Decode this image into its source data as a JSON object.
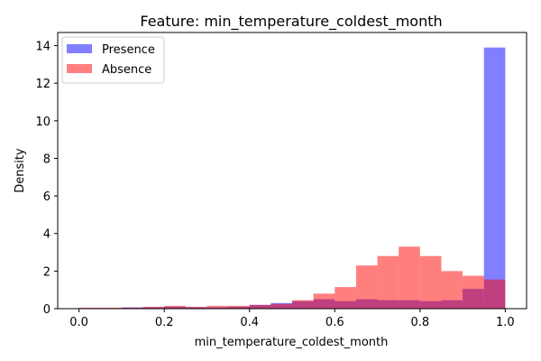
{
  "chart_data": {
    "type": "bar",
    "title": "Feature: min_temperature_coldest_month",
    "xlabel": "min_temperature_coldest_month",
    "ylabel": "Density",
    "xlim": [
      -0.05,
      1.05
    ],
    "ylim": [
      0,
      14.7
    ],
    "xticks": [
      "0.0",
      "0.2",
      "0.4",
      "0.6",
      "0.8",
      "1.0"
    ],
    "yticks": [
      "0",
      "2",
      "4",
      "6",
      "8",
      "10",
      "12",
      "14"
    ],
    "legend_position": "top-left",
    "grid": false,
    "bin_edges": [
      0.0,
      0.05,
      0.1,
      0.15,
      0.2,
      0.25,
      0.3,
      0.35,
      0.4,
      0.45,
      0.5,
      0.55,
      0.6,
      0.65,
      0.7,
      0.75,
      0.8,
      0.85,
      0.9,
      0.95,
      1.0
    ],
    "series": [
      {
        "name": "Presence",
        "color": "#0000ff",
        "opacity": 0.5,
        "values": [
          0.03,
          0.03,
          0.07,
          0.07,
          0.1,
          0.07,
          0.07,
          0.1,
          0.2,
          0.3,
          0.4,
          0.5,
          0.4,
          0.5,
          0.45,
          0.45,
          0.4,
          0.45,
          1.05,
          13.9
        ]
      },
      {
        "name": "Absence",
        "color": "#ff0000",
        "opacity": 0.5,
        "values": [
          0.05,
          0.05,
          0.05,
          0.1,
          0.15,
          0.1,
          0.15,
          0.15,
          0.2,
          0.25,
          0.45,
          0.8,
          1.15,
          2.3,
          2.8,
          3.3,
          2.8,
          2.0,
          1.75,
          1.55
        ]
      }
    ]
  }
}
